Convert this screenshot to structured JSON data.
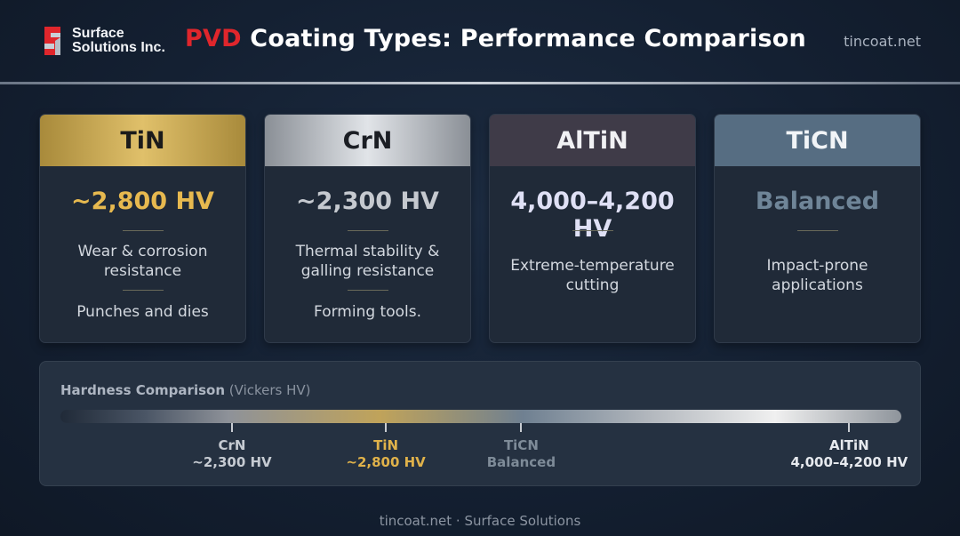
{
  "header": {
    "logo_line1": "Surface",
    "logo_line2": "Solutions Inc.",
    "title_accent": "PVD",
    "title_rest": " Coating Types: Performance Comparison",
    "site": "tincoat.net"
  },
  "cards": [
    {
      "name": "TiN",
      "hardness": "~2,800 HV",
      "desc1": "Wear & corrosion",
      "desc2": "resistance",
      "use": "Punches and dies"
    },
    {
      "name": "CrN",
      "hardness": "~2,300 HV",
      "desc1": "Thermal stability &",
      "desc2": "galling resistance",
      "use": "Forming tools."
    },
    {
      "name": "AlTiN",
      "hardness": "4,000–4,200 HV",
      "desc1": "Extreme-temperature",
      "desc2": "cutting"
    },
    {
      "name": "TiCN",
      "hardness": "Balanced",
      "desc1": "Impact-prone",
      "desc2": "applications"
    }
  ],
  "hardness_scale": {
    "title": "Hardness Comparison",
    "unit": "(Vickers HV)",
    "markers": [
      {
        "name": "CrN",
        "value": "~2,300 HV",
        "position": 0.204
      },
      {
        "name": "TiN",
        "value": "~2,800 HV",
        "position": 0.387
      },
      {
        "name": "TiCN",
        "value": "Balanced",
        "position": 0.548
      },
      {
        "name": "AlTiN",
        "value": "4,000–4,200 HV",
        "position": 0.938
      }
    ]
  },
  "footer": {
    "text": "tincoat.net · Surface Solutions"
  },
  "colors": {
    "accent_red": "#e0262c",
    "tin_gold": "#e7b94f",
    "background": "#142032"
  }
}
